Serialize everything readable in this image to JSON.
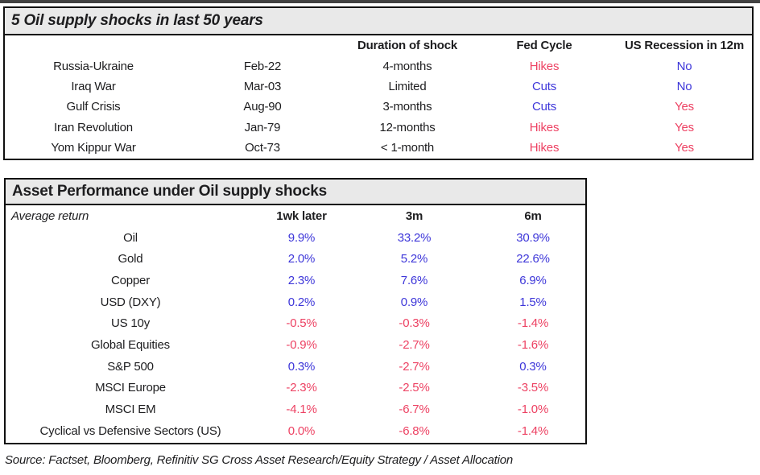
{
  "colors": {
    "positive_blue": "#3d36d9",
    "negative_red": "#ed4263",
    "title_bar_gray": "#e9e9e9",
    "border_black": "#101010"
  },
  "table1": {
    "title": "5 Oil supply shocks in last 50 years",
    "columns": {
      "duration": "Duration of shock",
      "fed": "Fed Cycle",
      "recession": "US Recession in 12m"
    },
    "rows": [
      {
        "event": "Russia-Ukraine",
        "date": "Feb-22",
        "duration": "4-months",
        "fed": "Hikes",
        "fed_color": "red",
        "recession": "No",
        "recession_color": "blue"
      },
      {
        "event": "Iraq War",
        "date": "Mar-03",
        "duration": "Limited",
        "fed": "Cuts",
        "fed_color": "blue",
        "recession": "No",
        "recession_color": "blue"
      },
      {
        "event": "Gulf Crisis",
        "date": "Aug-90",
        "duration": "3-months",
        "fed": "Cuts",
        "fed_color": "blue",
        "recession": "Yes",
        "recession_color": "red"
      },
      {
        "event": "Iran Revolution",
        "date": "Jan-79",
        "duration": "12-months",
        "fed": "Hikes",
        "fed_color": "red",
        "recession": "Yes",
        "recession_color": "red"
      },
      {
        "event": "Yom Kippur War",
        "date": "Oct-73",
        "duration": "< 1-month",
        "fed": "Hikes",
        "fed_color": "red",
        "recession": "Yes",
        "recession_color": "red"
      }
    ]
  },
  "table2": {
    "title": "Asset Performance under Oil supply shocks",
    "header": {
      "row_label": "Average return",
      "c1": "1wk later",
      "c2": "3m",
      "c3": "6m"
    },
    "rows": [
      {
        "asset": "Oil",
        "values": [
          "9.9%",
          "33.2%",
          "30.9%"
        ],
        "colors": [
          "blue",
          "blue",
          "blue"
        ]
      },
      {
        "asset": "Gold",
        "values": [
          "2.0%",
          "5.2%",
          "22.6%"
        ],
        "colors": [
          "blue",
          "blue",
          "blue"
        ]
      },
      {
        "asset": "Copper",
        "values": [
          "2.3%",
          "7.6%",
          "6.9%"
        ],
        "colors": [
          "blue",
          "blue",
          "blue"
        ]
      },
      {
        "asset": "USD (DXY)",
        "values": [
          "0.2%",
          "0.9%",
          "1.5%"
        ],
        "colors": [
          "blue",
          "blue",
          "blue"
        ]
      },
      {
        "asset": "US 10y",
        "values": [
          "-0.5%",
          "-0.3%",
          "-1.4%"
        ],
        "colors": [
          "red",
          "red",
          "red"
        ]
      },
      {
        "asset": "Global Equities",
        "values": [
          "-0.9%",
          "-2.7%",
          "-1.6%"
        ],
        "colors": [
          "red",
          "red",
          "red"
        ]
      },
      {
        "asset": "S&P 500",
        "values": [
          "0.3%",
          "-2.7%",
          "0.3%"
        ],
        "colors": [
          "blue",
          "red",
          "blue"
        ]
      },
      {
        "asset": "MSCI Europe",
        "values": [
          "-2.3%",
          "-2.5%",
          "-3.5%"
        ],
        "colors": [
          "red",
          "red",
          "red"
        ]
      },
      {
        "asset": "MSCI EM",
        "values": [
          "-4.1%",
          "-6.7%",
          "-1.0%"
        ],
        "colors": [
          "red",
          "red",
          "red"
        ]
      },
      {
        "asset": "Cyclical vs Defensive Sectors (US)",
        "values": [
          "0.0%",
          "-6.8%",
          "-1.4%"
        ],
        "colors": [
          "red",
          "red",
          "red"
        ]
      }
    ]
  },
  "source": "Source: Factset, Bloomberg, Refinitiv SG Cross Asset Research/Equity Strategy / Asset Allocation"
}
